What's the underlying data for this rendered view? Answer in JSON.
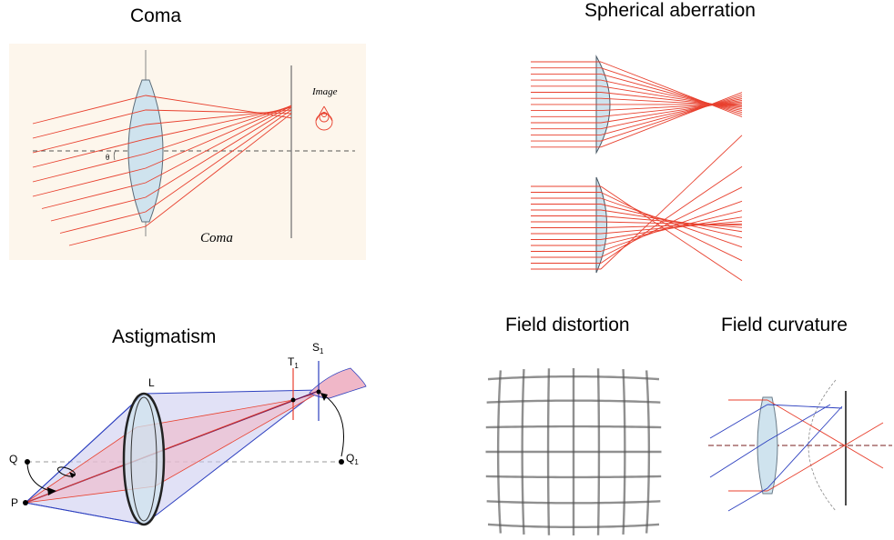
{
  "titles": {
    "coma": "Coma",
    "spherical": "Spherical aberration",
    "astigmatism": "Astigmatism",
    "distortion": "Field distortion",
    "curvature": "Field curvature"
  },
  "coma_panel": {
    "image_label": "Image",
    "caption": "Coma",
    "angle_label": "θ"
  },
  "astig_panel": {
    "L": "L",
    "T": "T",
    "S": "S",
    "sub1": "1",
    "Q": "Q",
    "P": "P",
    "Q1_main": "Q",
    "Q1_sub": "1"
  },
  "colors": {
    "ray_red": "#e8402e",
    "ray_blue": "#2c3fbf",
    "lens_fill": "#cfe3ee",
    "coma_bg": "#fdf6ec",
    "cone_blue": "#c9c9ef",
    "cone_pink": "#f0b7c8"
  }
}
